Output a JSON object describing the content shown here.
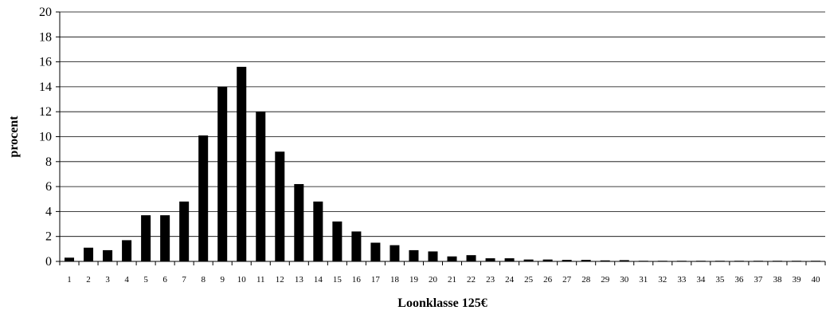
{
  "chart_data": {
    "type": "bar",
    "xlabel": "Loonklasse 125€",
    "ylabel": "procent",
    "ylim": [
      0,
      20
    ],
    "yticks": [
      0,
      2,
      4,
      6,
      8,
      10,
      12,
      14,
      16,
      18,
      20
    ],
    "grid": true,
    "bar_color": "#000000",
    "categories": [
      "1",
      "2",
      "3",
      "4",
      "5",
      "6",
      "7",
      "8",
      "9",
      "10",
      "11",
      "12",
      "13",
      "14",
      "15",
      "16",
      "17",
      "18",
      "19",
      "20",
      "21",
      "22",
      "23",
      "24",
      "25",
      "26",
      "27",
      "28",
      "29",
      "30",
      "31",
      "32",
      "33",
      "34",
      "35",
      "36",
      "37",
      "38",
      "39",
      "40"
    ],
    "values": [
      0.3,
      1.1,
      0.9,
      1.7,
      3.7,
      3.7,
      4.8,
      10.1,
      14.0,
      15.6,
      12.0,
      8.8,
      6.2,
      4.8,
      3.2,
      2.4,
      1.5,
      1.3,
      0.9,
      0.8,
      0.4,
      0.5,
      0.25,
      0.25,
      0.15,
      0.15,
      0.12,
      0.12,
      0.08,
      0.1,
      0.05,
      0.05,
      0.05,
      0.05,
      0.05,
      0.05,
      0.05,
      0.05,
      0.05,
      0.05
    ]
  }
}
